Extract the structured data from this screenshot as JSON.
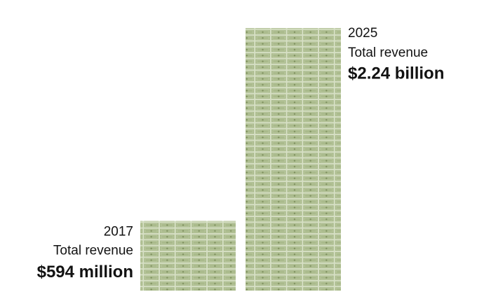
{
  "chart_data": {
    "type": "pictogram-bar",
    "categories": [
      "2017",
      "2025"
    ],
    "value_caption": "Total revenue",
    "values": [
      594000000,
      2240000000
    ],
    "value_labels": [
      "$594 million",
      "$2.24 billion"
    ],
    "color": "#a9ba8b"
  }
}
